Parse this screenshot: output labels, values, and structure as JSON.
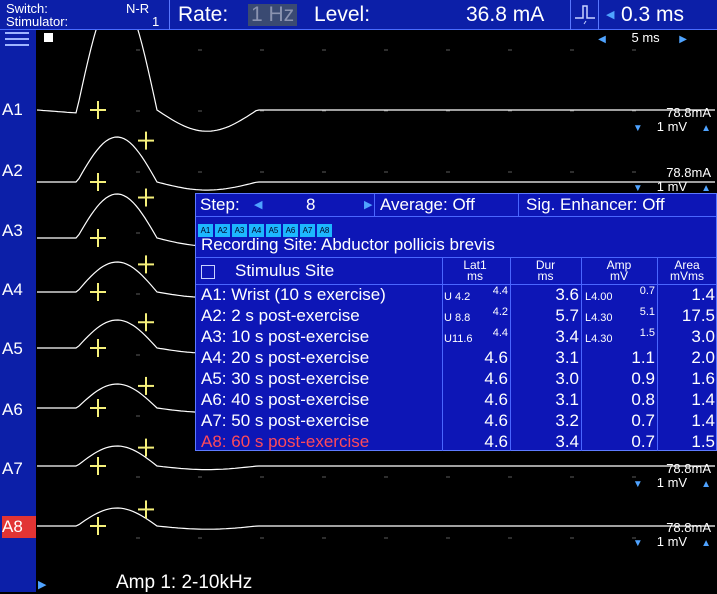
{
  "topbar": {
    "switch_label": "Switch:",
    "switch_value": "N-R",
    "stimulator_label": "Stimulator:",
    "stimulator_value": "1",
    "rate_label": "Rate:",
    "rate_value": "1 Hz",
    "level_label": "Level:",
    "level_value": "36.8 mA",
    "pulse_value": "0.3 ms"
  },
  "time_scale": "5 ms",
  "channels": [
    {
      "label": "A1",
      "stim": "78.8mA",
      "gain": "1 mV"
    },
    {
      "label": "A2",
      "stim": "78.8mA",
      "gain": "1 mV"
    },
    {
      "label": "A3"
    },
    {
      "label": "A4"
    },
    {
      "label": "A5"
    },
    {
      "label": "A6"
    },
    {
      "label": "A7",
      "stim": "78.8mA",
      "gain": "1 mV"
    },
    {
      "label": "A8",
      "stim": "78.8mA",
      "gain": "1 mV"
    }
  ],
  "amp_label": "Amp 1: 2-10kHz",
  "panel": {
    "step_label": "Step:",
    "step_value": "8",
    "average": "Average: Off",
    "sig_enhancer": "Sig. Enhancer: Off",
    "chips": [
      "A1",
      "A2",
      "A3",
      "A4",
      "A5",
      "A6",
      "A7",
      "A8"
    ],
    "recording_site": "Recording Site:  Abductor pollicis brevis",
    "headers": {
      "site": "Stimulus Site",
      "lat": "Lat1",
      "lat_unit": "ms",
      "dur": "Dur",
      "dur_unit": "ms",
      "amp": "Amp",
      "amp_unit": "mV",
      "area": "Area",
      "area_unit": "mVms"
    },
    "rows": [
      {
        "site": "A1: Wrist (10 s exercise)",
        "lat_prefix": "U 4.2",
        "lat": "4.4",
        "dur": "3.6",
        "amp_prefix": "L4.00",
        "amp": "0.7",
        "area": "1.4"
      },
      {
        "site": "A2: 2 s post-exercise",
        "lat_prefix": "U 8.8",
        "lat": "4.2",
        "dur": "5.7",
        "amp_prefix": "L4.30",
        "amp": "5.1",
        "area": "17.5"
      },
      {
        "site": "A3: 10 s post-exercise",
        "lat_prefix": "U11.6",
        "lat": "4.4",
        "dur": "3.4",
        "amp_prefix": "L4.30",
        "amp": "1.5",
        "area": "3.0"
      },
      {
        "site": "A4: 20 s post-exercise",
        "lat_prefix": "",
        "lat": "4.6",
        "dur": "3.1",
        "amp_prefix": "",
        "amp": "1.1",
        "area": "2.0"
      },
      {
        "site": "A5: 30 s post-exercise",
        "lat_prefix": "",
        "lat": "4.6",
        "dur": "3.0",
        "amp_prefix": "",
        "amp": "0.9",
        "area": "1.6"
      },
      {
        "site": "A6: 40 s post-exercise",
        "lat_prefix": "",
        "lat": "4.6",
        "dur": "3.1",
        "amp_prefix": "",
        "amp": "0.8",
        "area": "1.4"
      },
      {
        "site": "A7: 50 s post-exercise",
        "lat_prefix": "",
        "lat": "4.6",
        "dur": "3.2",
        "amp_prefix": "",
        "amp": "0.7",
        "area": "1.4"
      },
      {
        "site": "A8: 60 s post-exercise",
        "lat_prefix": "",
        "lat": "4.6",
        "dur": "3.4",
        "amp_prefix": "",
        "amp": "0.7",
        "area": "1.5"
      }
    ]
  },
  "colors": {
    "panel_bg": "#0d16b6",
    "bar_bg": "#0c1fa8",
    "trace": "#ffffff",
    "cursor": "#f5f07a",
    "active_channel": "#e23434"
  }
}
